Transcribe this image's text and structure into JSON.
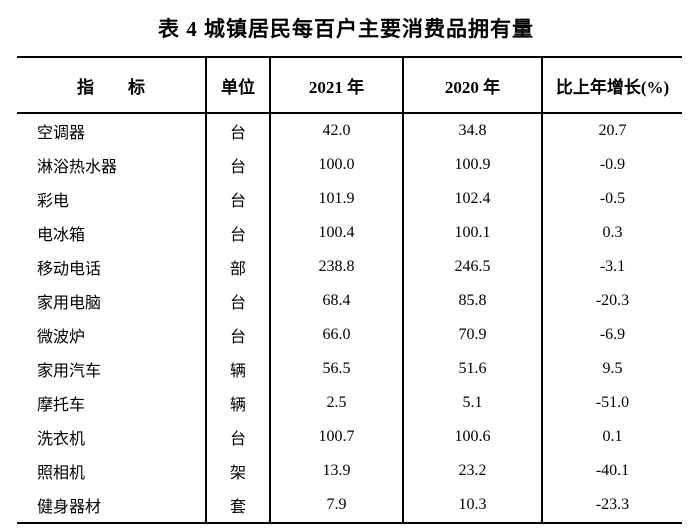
{
  "page": {
    "title": "表 4 城镇居民每百户主要消费品拥有量"
  },
  "table": {
    "columns": {
      "indicator": "指　　标",
      "unit": "单位",
      "y2021": "2021 年",
      "y2020": "2020 年",
      "growth": "比上年增长(%)"
    },
    "rows": [
      {
        "indicator": "空调器",
        "unit": "台",
        "y2021": "42.0",
        "y2020": "34.8",
        "growth": "20.7"
      },
      {
        "indicator": "淋浴热水器",
        "unit": "台",
        "y2021": "100.0",
        "y2020": "100.9",
        "growth": "-0.9"
      },
      {
        "indicator": "彩电",
        "unit": "台",
        "y2021": "101.9",
        "y2020": "102.4",
        "growth": "-0.5"
      },
      {
        "indicator": "电冰箱",
        "unit": "台",
        "y2021": "100.4",
        "y2020": "100.1",
        "growth": "0.3"
      },
      {
        "indicator": "移动电话",
        "unit": "部",
        "y2021": "238.8",
        "y2020": "246.5",
        "growth": "-3.1"
      },
      {
        "indicator": "家用电脑",
        "unit": "台",
        "y2021": "68.4",
        "y2020": "85.8",
        "growth": "-20.3"
      },
      {
        "indicator": "微波炉",
        "unit": "台",
        "y2021": "66.0",
        "y2020": "70.9",
        "growth": "-6.9"
      },
      {
        "indicator": "家用汽车",
        "unit": "辆",
        "y2021": "56.5",
        "y2020": "51.6",
        "growth": "9.5"
      },
      {
        "indicator": "摩托车",
        "unit": "辆",
        "y2021": "2.5",
        "y2020": "5.1",
        "growth": "-51.0"
      },
      {
        "indicator": "洗衣机",
        "unit": "台",
        "y2021": "100.7",
        "y2020": "100.6",
        "growth": "0.1"
      },
      {
        "indicator": "照相机",
        "unit": "架",
        "y2021": "13.9",
        "y2020": "23.2",
        "growth": "-40.1"
      },
      {
        "indicator": "健身器材",
        "unit": "套",
        "y2021": "7.9",
        "y2020": "10.3",
        "growth": "-23.3"
      }
    ]
  },
  "colors": {
    "text": "#000000",
    "border": "#000000",
    "background": "#ffffff"
  }
}
